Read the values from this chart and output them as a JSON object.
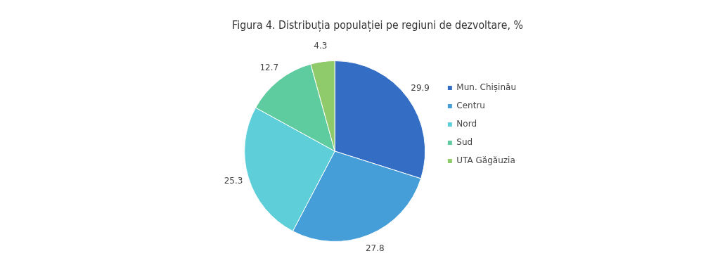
{
  "chart_data": {
    "type": "pie",
    "title": "Figura 4. Distribuția populației pe regiuni de dezvoltare, %",
    "categories": [
      "Mun. Chișinău",
      "Centru",
      "Nord",
      "Sud",
      "UTA Găgăuzia"
    ],
    "values": [
      29.9,
      27.8,
      25.3,
      12.7,
      4.3
    ],
    "colors": [
      "#336ec4",
      "#459ed8",
      "#5ecfd9",
      "#5fcc9f",
      "#8fcb6a"
    ],
    "data_labels": true,
    "legend": "right"
  }
}
